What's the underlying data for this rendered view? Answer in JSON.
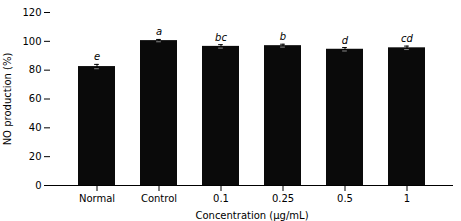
{
  "chart_data": {
    "type": "bar",
    "categories": [
      "Normal",
      "Control",
      "0.1",
      "0.25",
      "0.5",
      "1"
    ],
    "values": [
      82.5,
      100.5,
      96.5,
      97.0,
      94.5,
      95.5
    ],
    "errors": [
      1.5,
      0.8,
      1.2,
      1.0,
      1.2,
      1.2
    ],
    "annotations": [
      "e",
      "a",
      "bc",
      "b",
      "d",
      "cd"
    ],
    "color": "#0a0a0a",
    "xlabel": "Concentration (μg/mL)",
    "ylabel": "NO production (%)",
    "ylim": [
      0,
      120
    ],
    "yticks": [
      0,
      20,
      40,
      60,
      80,
      100,
      120
    ],
    "grid": false
  }
}
